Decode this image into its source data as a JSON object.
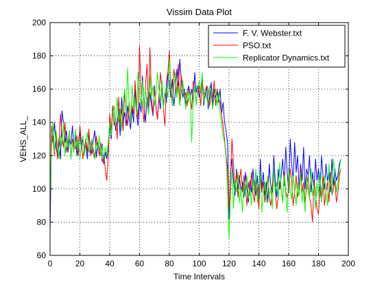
{
  "chart_data": {
    "type": "line",
    "title": "Vissim Data Plot",
    "xlabel": "Time Intervals",
    "ylabel": "VEHS_ALL_",
    "xlim": [
      0,
      200
    ],
    "ylim": [
      60,
      200
    ],
    "xticks": [
      0,
      20,
      40,
      60,
      80,
      100,
      120,
      140,
      160,
      180,
      200
    ],
    "yticks": [
      60,
      80,
      100,
      120,
      140,
      160,
      180,
      200
    ],
    "grid": true,
    "legend_position": "top-right",
    "series": [
      {
        "name": "F. V. Webster.txt",
        "color": "#0000ff",
        "x": [
          0,
          1,
          2,
          3,
          4,
          5,
          6,
          7,
          8,
          9,
          10,
          11,
          12,
          13,
          14,
          15,
          16,
          17,
          18,
          19,
          20,
          21,
          22,
          23,
          24,
          25,
          26,
          27,
          28,
          29,
          30,
          31,
          32,
          33,
          34,
          35,
          36,
          37,
          38,
          39,
          40,
          41,
          42,
          43,
          44,
          45,
          46,
          47,
          48,
          49,
          50,
          51,
          52,
          53,
          54,
          55,
          56,
          57,
          58,
          59,
          60,
          61,
          62,
          63,
          64,
          65,
          66,
          67,
          68,
          69,
          70,
          71,
          72,
          73,
          74,
          75,
          76,
          77,
          78,
          79,
          80,
          81,
          82,
          83,
          84,
          85,
          86,
          87,
          88,
          89,
          90,
          91,
          92,
          93,
          94,
          95,
          96,
          97,
          98,
          99,
          100,
          101,
          102,
          103,
          104,
          105,
          106,
          107,
          108,
          109,
          110,
          111,
          112,
          113,
          114,
          115,
          116,
          117,
          118,
          119,
          120,
          121,
          122,
          123,
          124,
          125,
          126,
          127,
          128,
          129,
          130,
          131,
          132,
          133,
          134,
          135,
          136,
          137,
          138,
          139,
          140,
          141,
          142,
          143,
          144,
          145,
          146,
          147,
          148,
          149,
          150,
          151,
          152,
          153,
          154,
          155,
          156,
          157,
          158,
          159,
          160,
          161,
          162,
          163,
          164,
          165,
          166,
          167,
          168,
          169,
          170,
          171,
          172,
          173,
          174,
          175,
          176,
          177,
          178,
          179,
          180,
          181,
          182,
          183,
          184,
          185,
          186,
          187,
          188,
          189,
          190,
          191,
          192,
          193,
          194,
          195
        ],
        "y": [
          75,
          132,
          128,
          140,
          125,
          120,
          130,
          118,
          147,
          140,
          128,
          135,
          122,
          130,
          127,
          138,
          125,
          132,
          120,
          128,
          135,
          124,
          130,
          122,
          127,
          118,
          133,
          126,
          121,
          130,
          135,
          119,
          128,
          124,
          120,
          127,
          115,
          122,
          118,
          125,
          138,
          130,
          145,
          150,
          135,
          140,
          148,
          132,
          155,
          140,
          146,
          138,
          150,
          142,
          136,
          148,
          140,
          160,
          145,
          138,
          152,
          146,
          168,
          150,
          140,
          155,
          145,
          158,
          150,
          144,
          162,
          150,
          142,
          155,
          148,
          165,
          150,
          158,
          152,
          170,
          164,
          155,
          166,
          150,
          158,
          172,
          160,
          178,
          165,
          155,
          160,
          150,
          158,
          162,
          155,
          160,
          152,
          170,
          158,
          162,
          155,
          160,
          166,
          150,
          158,
          162,
          148,
          155,
          164,
          150,
          160,
          155,
          158,
          152,
          160,
          145,
          152,
          140,
          135,
          128,
          82,
          110,
          118,
          105,
          96,
          112,
          100,
          108,
          98,
          104,
          95,
          110,
          100,
          92,
          105,
          98,
          112,
          102,
          96,
          108,
          94,
          118,
          100,
          110,
          96,
          104,
          92,
          115,
          102,
          98,
          120,
          105,
          95,
          112,
          100,
          108,
          118,
          102,
          125,
          110,
          98,
          130,
          115,
          105,
          128,
          110,
          120,
          100,
          115,
          105,
          125,
          100,
          112,
          108,
          120,
          98,
          110,
          100,
          118,
          105,
          112,
          95,
          120,
          108,
          100,
          115,
          105,
          110,
          98,
          118,
          102,
          112,
          105,
          108,
          115,
          118
        ]
      },
      {
        "name": "PSO.txt",
        "color": "#ff0000",
        "x": [
          0,
          1,
          2,
          3,
          4,
          5,
          6,
          7,
          8,
          9,
          10,
          11,
          12,
          13,
          14,
          15,
          16,
          17,
          18,
          19,
          20,
          21,
          22,
          23,
          24,
          25,
          26,
          27,
          28,
          29,
          30,
          31,
          32,
          33,
          34,
          35,
          36,
          37,
          38,
          39,
          40,
          41,
          42,
          43,
          44,
          45,
          46,
          47,
          48,
          49,
          50,
          51,
          52,
          53,
          54,
          55,
          56,
          57,
          58,
          59,
          60,
          61,
          62,
          63,
          64,
          65,
          66,
          67,
          68,
          69,
          70,
          71,
          72,
          73,
          74,
          75,
          76,
          77,
          78,
          79,
          80,
          81,
          82,
          83,
          84,
          85,
          86,
          87,
          88,
          89,
          90,
          91,
          92,
          93,
          94,
          95,
          96,
          97,
          98,
          99,
          100,
          101,
          102,
          103,
          104,
          105,
          106,
          107,
          108,
          109,
          110,
          111,
          112,
          113,
          114,
          115,
          116,
          117,
          118,
          119,
          120,
          121,
          122,
          123,
          124,
          125,
          126,
          127,
          128,
          129,
          130,
          131,
          132,
          133,
          134,
          135,
          136,
          137,
          138,
          139,
          140,
          141,
          142,
          143,
          144,
          145,
          146,
          147,
          148,
          149,
          150,
          151,
          152,
          153,
          154,
          155,
          156,
          157,
          158,
          159,
          160,
          161,
          162,
          163,
          164,
          165,
          166,
          167,
          168,
          169,
          170,
          171,
          172,
          173,
          174,
          175,
          176,
          177,
          178,
          179,
          180,
          181,
          182,
          183,
          184,
          185,
          186,
          187,
          188,
          189,
          190,
          191,
          192,
          193,
          194,
          195
        ],
        "y": [
          88,
          138,
          130,
          120,
          135,
          118,
          128,
          145,
          132,
          125,
          140,
          122,
          128,
          135,
          118,
          130,
          126,
          124,
          132,
          120,
          138,
          128,
          118,
          125,
          130,
          122,
          136,
          120,
          128,
          124,
          118,
          132,
          125,
          120,
          128,
          116,
          120,
          112,
          105,
          118,
          145,
          135,
          150,
          138,
          142,
          130,
          155,
          140,
          148,
          135,
          160,
          145,
          138,
          152,
          140,
          150,
          145,
          165,
          150,
          142,
          186,
          158,
          150,
          140,
          162,
          175,
          148,
          185,
          155,
          145,
          160,
          150,
          142,
          155,
          170,
          160,
          148,
          138,
          165,
          170,
          183,
          160,
          150,
          172,
          165,
          155,
          175,
          150,
          168,
          162,
          155,
          158,
          150,
          160,
          155,
          148,
          165,
          160,
          152,
          158,
          162,
          150,
          165,
          158,
          155,
          162,
          160,
          150,
          158,
          155,
          165,
          150,
          160,
          155,
          152,
          145,
          138,
          130,
          120,
          112,
          88,
          108,
          130,
          115,
          100,
          110,
          95,
          105,
          112,
          98,
          108,
          100,
          90,
          104,
          96,
          110,
          98,
          92,
          105,
          100,
          88,
          110,
          98,
          104,
          92,
          100,
          108,
          95,
          90,
          102,
          110,
          98,
          88,
          96,
          104,
          100,
          92,
          110,
          98,
          95,
          100,
          112,
          105,
          90,
          98,
          108,
          95,
          100,
          112,
          98,
          104,
          92,
          100,
          108,
          95,
          90,
          80,
          105,
          98,
          88,
          85,
          100,
          95,
          108,
          90,
          98,
          104,
          92,
          110,
          96,
          100,
          105,
          92,
          98,
          108,
          112
        ]
      },
      {
        "name": "Replicator Dynamics.txt",
        "color": "#00ff00",
        "x": [
          0,
          1,
          2,
          3,
          4,
          5,
          6,
          7,
          8,
          9,
          10,
          11,
          12,
          13,
          14,
          15,
          16,
          17,
          18,
          19,
          20,
          21,
          22,
          23,
          24,
          25,
          26,
          27,
          28,
          29,
          30,
          31,
          32,
          33,
          34,
          35,
          36,
          37,
          38,
          39,
          40,
          41,
          42,
          43,
          44,
          45,
          46,
          47,
          48,
          49,
          50,
          51,
          52,
          53,
          54,
          55,
          56,
          57,
          58,
          59,
          60,
          61,
          62,
          63,
          64,
          65,
          66,
          67,
          68,
          69,
          70,
          71,
          72,
          73,
          74,
          75,
          76,
          77,
          78,
          79,
          80,
          81,
          82,
          83,
          84,
          85,
          86,
          87,
          88,
          89,
          90,
          91,
          92,
          93,
          94,
          95,
          96,
          97,
          98,
          99,
          100,
          101,
          102,
          103,
          104,
          105,
          106,
          107,
          108,
          109,
          110,
          111,
          112,
          113,
          114,
          115,
          116,
          117,
          118,
          119,
          120,
          121,
          122,
          123,
          124,
          125,
          126,
          127,
          128,
          129,
          130,
          131,
          132,
          133,
          134,
          135,
          136,
          137,
          138,
          139,
          140,
          141,
          142,
          143,
          144,
          145,
          146,
          147,
          148,
          149,
          150,
          151,
          152,
          153,
          154,
          155,
          156,
          157,
          158,
          159,
          160,
          161,
          162,
          163,
          164,
          165,
          166,
          167,
          168,
          169,
          170,
          171,
          172,
          173,
          174,
          175,
          176,
          177,
          178,
          179,
          180,
          181,
          182,
          183,
          184,
          185,
          186,
          187,
          188,
          189,
          190,
          191,
          192,
          193,
          194,
          195
        ],
        "y": [
          95,
          125,
          140,
          122,
          135,
          128,
          118,
          132,
          126,
          140,
          120,
          130,
          125,
          135,
          118,
          128,
          122,
          136,
          124,
          130,
          118,
          126,
          132,
          120,
          128,
          134,
          122,
          126,
          130,
          120,
          118,
          128,
          124,
          132,
          120,
          126,
          118,
          125,
          120,
          128,
          140,
          132,
          145,
          150,
          138,
          155,
          140,
          148,
          135,
          152,
          160,
          145,
          173,
          150,
          140,
          162,
          148,
          155,
          145,
          170,
          158,
          150,
          165,
          148,
          160,
          152,
          145,
          168,
          155,
          162,
          150,
          158,
          170,
          160,
          152,
          165,
          148,
          158,
          162,
          155,
          178,
          165,
          150,
          160,
          170,
          155,
          162,
          150,
          158,
          165,
          155,
          148,
          160,
          152,
          158,
          128,
          155,
          162,
          150,
          160,
          165,
          158,
          170,
          152,
          160,
          155,
          150,
          162,
          158,
          148,
          155,
          160,
          150,
          158,
          145,
          140,
          132,
          128,
          118,
          100,
          70,
          96,
          112,
          88,
          105,
          98,
          110,
          92,
          100,
          86,
          104,
          96,
          108,
          94,
          100,
          90,
          106,
          98,
          112,
          92,
          100,
          110,
          86,
          98,
          104,
          92,
          108,
          96,
          100,
          88,
          112,
          98,
          104,
          94,
          116,
          100,
          92,
          108,
          96,
          86,
          112,
          100,
          94,
          108,
          98,
          90,
          104,
          96,
          110,
          92,
          100,
          86,
          108,
          98,
          94,
          112,
          96,
          102,
          88,
          104,
          96,
          110,
          92,
          100,
          108,
          98,
          90,
          115,
          104,
          96,
          118,
          110,
          98,
          104,
          112,
          118
        ]
      }
    ]
  }
}
